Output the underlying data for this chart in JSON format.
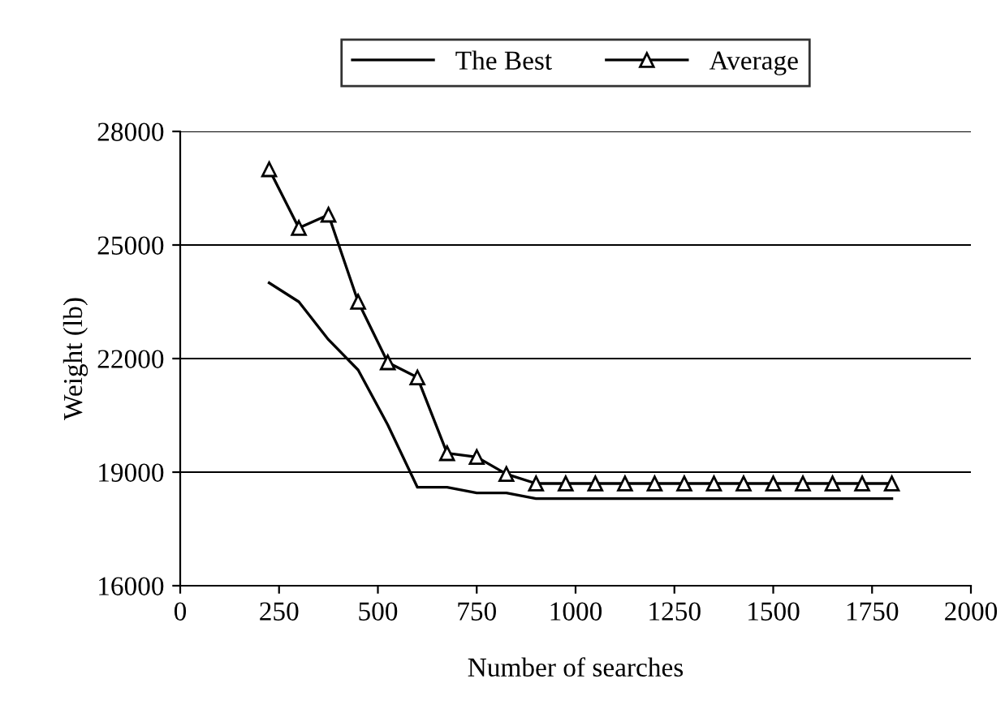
{
  "chart_data": {
    "type": "line",
    "xlabel": "Number of searches",
    "ylabel": "Weight (lb)",
    "xlim": [
      0,
      2000
    ],
    "xticks": [
      0,
      250,
      500,
      750,
      1000,
      1250,
      1500,
      1750,
      2000
    ],
    "ylim": [
      16000,
      28000
    ],
    "yticks": [
      16000,
      19000,
      22000,
      25000,
      28000
    ],
    "grid": "y",
    "legend": "top",
    "series": [
      {
        "name": "The Best",
        "color": "#000000",
        "marker": "none",
        "x": [
          225,
          300,
          375,
          450,
          525,
          600,
          675,
          750,
          825,
          900,
          975,
          1050,
          1125,
          1200,
          1275,
          1350,
          1425,
          1500,
          1575,
          1650,
          1725,
          1800
        ],
        "values": [
          24000,
          23500,
          22500,
          21700,
          20250,
          18600,
          18600,
          18450,
          18450,
          18300,
          18300,
          18300,
          18300,
          18300,
          18300,
          18300,
          18300,
          18300,
          18300,
          18300,
          18300,
          18300
        ]
      },
      {
        "name": "Average",
        "color": "#000000",
        "marker": "triangle",
        "x": [
          225,
          300,
          375,
          450,
          525,
          600,
          675,
          750,
          825,
          900,
          975,
          1050,
          1125,
          1200,
          1275,
          1350,
          1425,
          1500,
          1575,
          1650,
          1725,
          1800
        ],
        "values": [
          27000,
          25450,
          25800,
          23500,
          21900,
          21500,
          19500,
          19400,
          18950,
          18700,
          18700,
          18700,
          18700,
          18700,
          18700,
          18700,
          18700,
          18700,
          18700,
          18700,
          18700,
          18700
        ]
      }
    ]
  }
}
